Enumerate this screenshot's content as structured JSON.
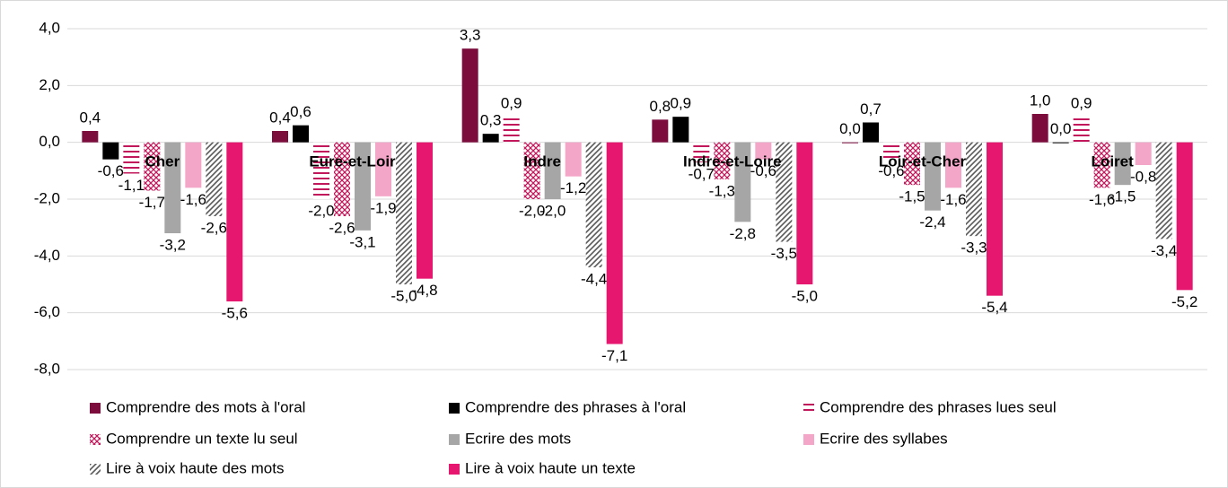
{
  "chart_data": {
    "type": "bar",
    "categories": [
      "Cher",
      "Eure-et-Loir",
      "Indre",
      "Indre-et-Loire",
      "Loir-et-Cher",
      "Loiret"
    ],
    "series": [
      {
        "name": "Comprendre des mots à l'oral",
        "color": "#7b0c3c",
        "values": [
          0.4,
          0.4,
          3.3,
          0.8,
          0.0,
          1.0
        ],
        "value_labels": [
          "0,4",
          "0,4",
          "3,3",
          "0,8",
          "0,0",
          "1,0"
        ]
      },
      {
        "name": "Comprendre des phrases à l'oral",
        "color": "#000000",
        "values": [
          -0.6,
          0.6,
          0.3,
          0.9,
          0.7,
          0.0
        ],
        "value_labels": [
          "-0,6",
          "0,6",
          "0,3",
          "0,9",
          "0,7",
          "0,0"
        ]
      },
      {
        "name": "Comprendre des phrases lues seul",
        "color": "#c2185b",
        "pattern": "hstripe",
        "values": [
          -1.1,
          -2.0,
          0.9,
          -0.7,
          -0.6,
          0.9
        ],
        "value_labels": [
          "-1,1",
          "-2,0",
          "0,9",
          "-0,7",
          "-0,6",
          "0,9"
        ]
      },
      {
        "name": "Comprendre un texte lu seul",
        "color": "#c2185b",
        "pattern": "crosshatch",
        "values": [
          -1.7,
          -2.6,
          -2.0,
          -1.3,
          -1.5,
          -1.6
        ],
        "value_labels": [
          "-1,7",
          "-2,6",
          "-2,0",
          "-1,3",
          "-1,5",
          "-1,6"
        ]
      },
      {
        "name": "Ecrire des mots",
        "color": "#a6a6a6",
        "values": [
          -3.2,
          -3.1,
          -2.0,
          -2.8,
          -2.4,
          -1.5
        ],
        "value_labels": [
          "-3,2",
          "-3,1",
          "-2,0",
          "-2,8",
          "-2,4",
          "-1,5"
        ]
      },
      {
        "name": "Ecrire des syllabes",
        "color": "#f4a6c8",
        "values": [
          -1.6,
          -1.9,
          -1.2,
          -0.6,
          -1.6,
          -0.8
        ],
        "value_labels": [
          "-1,6",
          "-1,9",
          "-1,2",
          "-0,6",
          "-1,6",
          "-0,8"
        ]
      },
      {
        "name": "Lire à voix haute des mots",
        "color": "#595959",
        "pattern": "diagonal",
        "values": [
          -2.6,
          -5.0,
          -4.4,
          -3.5,
          -3.3,
          -3.4
        ],
        "value_labels": [
          "-2,6",
          "-5,0",
          "-4,4",
          "-3,5",
          "-3,3",
          "-3,4"
        ]
      },
      {
        "name": "Lire à voix haute un texte",
        "color": "#e6176f",
        "values": [
          -5.6,
          -4.8,
          -7.1,
          -5.0,
          -5.4,
          -5.2
        ],
        "value_labels": [
          "-5,6",
          "-4,8",
          "-7,1",
          "-5,0",
          "-5,4",
          "-5,2"
        ]
      }
    ],
    "ylim": [
      -8,
      4
    ],
    "yticks": [
      {
        "value": -8,
        "label": "-8,0"
      },
      {
        "value": -6,
        "label": "-6,0"
      },
      {
        "value": -4,
        "label": "-4,0"
      },
      {
        "value": -2,
        "label": "-2,0"
      },
      {
        "value": 0,
        "label": "0,0"
      },
      {
        "value": 2,
        "label": "2,0"
      },
      {
        "value": 4,
        "label": "4,0"
      }
    ],
    "grid": true,
    "legend": "bottom"
  }
}
